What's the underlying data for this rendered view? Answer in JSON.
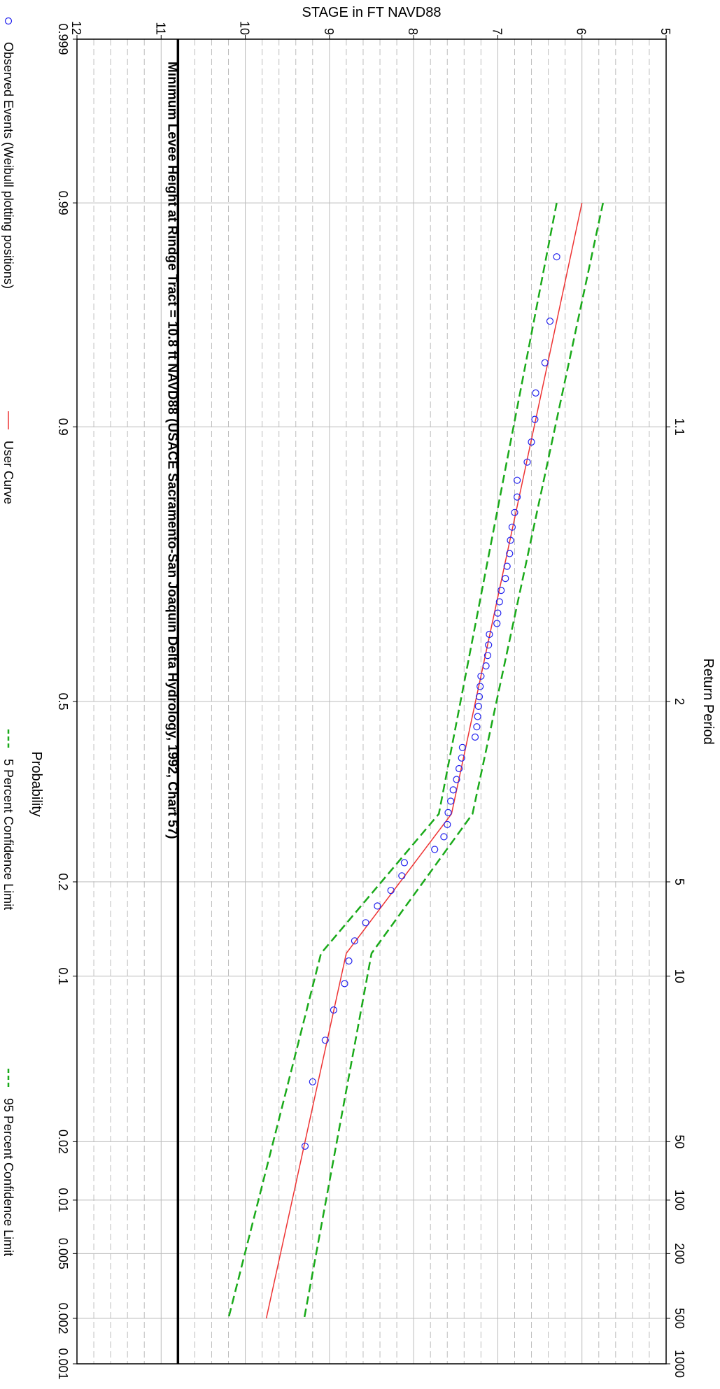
{
  "chart_data": {
    "type": "line",
    "orientation": "rotated-90-clockwise",
    "title": "",
    "ylabel": "STAGE in FT NAVD88",
    "xlabel": "Probability",
    "x2label": "Return Period",
    "ylim": [
      5,
      12
    ],
    "y_ticks": [
      5,
      6,
      7,
      8,
      9,
      10,
      11,
      12
    ],
    "x_scale": "probability",
    "x_ticks": [
      {
        "p": 0.999,
        "label": "0.999"
      },
      {
        "p": 0.99,
        "label": "0.99"
      },
      {
        "p": 0.9,
        "label": "0.9"
      },
      {
        "p": 0.5,
        "label": "0.5"
      },
      {
        "p": 0.2,
        "label": "0.2"
      },
      {
        "p": 0.1,
        "label": "0.1"
      },
      {
        "p": 0.02,
        "label": "0.02"
      },
      {
        "p": 0.01,
        "label": "0.01"
      },
      {
        "p": 0.005,
        "label": "0.005"
      },
      {
        "p": 0.002,
        "label": "0.002"
      },
      {
        "p": 0.001,
        "label": "0.001"
      }
    ],
    "x2_ticks": [
      {
        "p": 0.9,
        "label": "1.1"
      },
      {
        "p": 0.5,
        "label": "2"
      },
      {
        "p": 0.2,
        "label": "5"
      },
      {
        "p": 0.1,
        "label": "10"
      },
      {
        "p": 0.02,
        "label": "50"
      },
      {
        "p": 0.01,
        "label": "100"
      },
      {
        "p": 0.005,
        "label": "200"
      },
      {
        "p": 0.002,
        "label": "500"
      },
      {
        "p": 0.001,
        "label": "1000"
      }
    ],
    "minor_gridlines_y_step": 0.2,
    "grid": true,
    "legend_position": "bottom",
    "reference_line": {
      "value": 10.8,
      "label": "Minimum Levee Height at Rindge Tract = 10.8 ft NAVD88  (USACE Sacramento-San Joaquin Delta Hydrology, 1992, Chart 57)"
    },
    "series": [
      {
        "name": "Observed Events (Weibull plotting positions)",
        "type": "scatter",
        "color": "#2222ee",
        "points": [
          {
            "p": 0.981,
            "y": 6.3
          },
          {
            "p": 0.962,
            "y": 6.38
          },
          {
            "p": 0.943,
            "y": 6.44
          },
          {
            "p": 0.925,
            "y": 6.55
          },
          {
            "p": 0.906,
            "y": 6.56
          },
          {
            "p": 0.887,
            "y": 6.6
          },
          {
            "p": 0.868,
            "y": 6.65
          },
          {
            "p": 0.849,
            "y": 6.77
          },
          {
            "p": 0.83,
            "y": 6.77
          },
          {
            "p": 0.811,
            "y": 6.8
          },
          {
            "p": 0.792,
            "y": 6.83
          },
          {
            "p": 0.774,
            "y": 6.85
          },
          {
            "p": 0.755,
            "y": 6.86
          },
          {
            "p": 0.736,
            "y": 6.89
          },
          {
            "p": 0.717,
            "y": 6.91
          },
          {
            "p": 0.698,
            "y": 6.96
          },
          {
            "p": 0.679,
            "y": 6.98
          },
          {
            "p": 0.66,
            "y": 7.0
          },
          {
            "p": 0.642,
            "y": 7.01
          },
          {
            "p": 0.623,
            "y": 7.1
          },
          {
            "p": 0.604,
            "y": 7.11
          },
          {
            "p": 0.585,
            "y": 7.12
          },
          {
            "p": 0.566,
            "y": 7.14
          },
          {
            "p": 0.547,
            "y": 7.2
          },
          {
            "p": 0.528,
            "y": 7.21
          },
          {
            "p": 0.509,
            "y": 7.22
          },
          {
            "p": 0.491,
            "y": 7.23
          },
          {
            "p": 0.472,
            "y": 7.24
          },
          {
            "p": 0.453,
            "y": 7.25
          },
          {
            "p": 0.434,
            "y": 7.27
          },
          {
            "p": 0.415,
            "y": 7.42
          },
          {
            "p": 0.396,
            "y": 7.43
          },
          {
            "p": 0.377,
            "y": 7.46
          },
          {
            "p": 0.358,
            "y": 7.49
          },
          {
            "p": 0.34,
            "y": 7.53
          },
          {
            "p": 0.321,
            "y": 7.56
          },
          {
            "p": 0.302,
            "y": 7.59
          },
          {
            "p": 0.283,
            "y": 7.6
          },
          {
            "p": 0.264,
            "y": 7.64
          },
          {
            "p": 0.245,
            "y": 7.75
          },
          {
            "p": 0.226,
            "y": 8.11
          },
          {
            "p": 0.208,
            "y": 8.14
          },
          {
            "p": 0.189,
            "y": 8.27
          },
          {
            "p": 0.17,
            "y": 8.43
          },
          {
            "p": 0.151,
            "y": 8.57
          },
          {
            "p": 0.132,
            "y": 8.7
          },
          {
            "p": 0.113,
            "y": 8.77
          },
          {
            "p": 0.094,
            "y": 8.82
          },
          {
            "p": 0.075,
            "y": 8.95
          },
          {
            "p": 0.057,
            "y": 9.05
          },
          {
            "p": 0.038,
            "y": 9.2
          },
          {
            "p": 0.019,
            "y": 9.29
          }
        ]
      },
      {
        "name": "User Curve",
        "type": "line",
        "color": "#ee3333",
        "dash": "solid",
        "points": [
          {
            "p": 0.99,
            "y": 6.0
          },
          {
            "p": 0.3,
            "y": 7.55
          },
          {
            "p": 0.12,
            "y": 8.8
          },
          {
            "p": 0.002,
            "y": 9.75
          }
        ]
      },
      {
        "name": "5 Percent Confidence Limit",
        "type": "line",
        "color": "#1aaa1a",
        "dash": "dashed",
        "points": [
          {
            "p": 0.99,
            "y": 6.3
          },
          {
            "p": 0.3,
            "y": 7.7
          },
          {
            "p": 0.12,
            "y": 9.1
          },
          {
            "p": 0.002,
            "y": 10.2
          }
        ]
      },
      {
        "name": "95 Percent Confidence Limit",
        "type": "line",
        "color": "#1aaa1a",
        "dash": "dashed",
        "points": [
          {
            "p": 0.99,
            "y": 5.75
          },
          {
            "p": 0.3,
            "y": 7.3
          },
          {
            "p": 0.12,
            "y": 8.5
          },
          {
            "p": 0.002,
            "y": 9.3
          }
        ]
      }
    ]
  }
}
